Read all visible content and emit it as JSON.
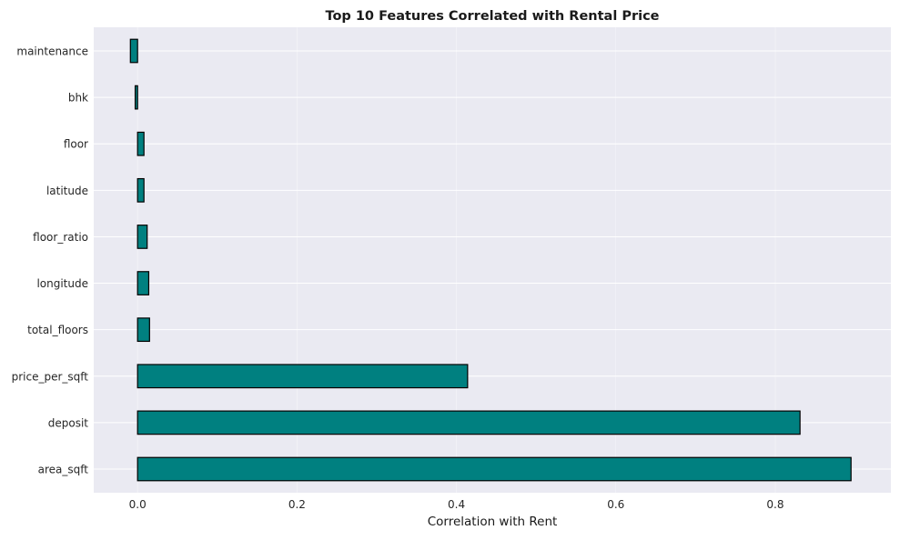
{
  "chart_data": {
    "type": "bar",
    "orientation": "horizontal",
    "title": "Top 10 Features Correlated with Rental Price",
    "xlabel": "Correlation with Rent",
    "ylabel": "",
    "categories": [
      "area_sqft",
      "deposit",
      "price_per_sqft",
      "total_floors",
      "longitude",
      "floor_ratio",
      "latitude",
      "floor",
      "bhk",
      "maintenance"
    ],
    "values": [
      0.895,
      0.831,
      0.414,
      0.015,
      0.014,
      0.012,
      0.008,
      0.008,
      -0.003,
      -0.009
    ],
    "xlim": [
      -0.055,
      0.945
    ],
    "xticks": [
      "0.0",
      "0.2",
      "0.4",
      "0.6",
      "0.8"
    ],
    "xtick_values": [
      0,
      0.2,
      0.4,
      0.6,
      0.8
    ],
    "grid": true,
    "colors": {
      "bar_fill": "#008080",
      "bar_edge": "#000000",
      "plot_background": "#eaeaf2",
      "grid": "#ffffff"
    }
  }
}
